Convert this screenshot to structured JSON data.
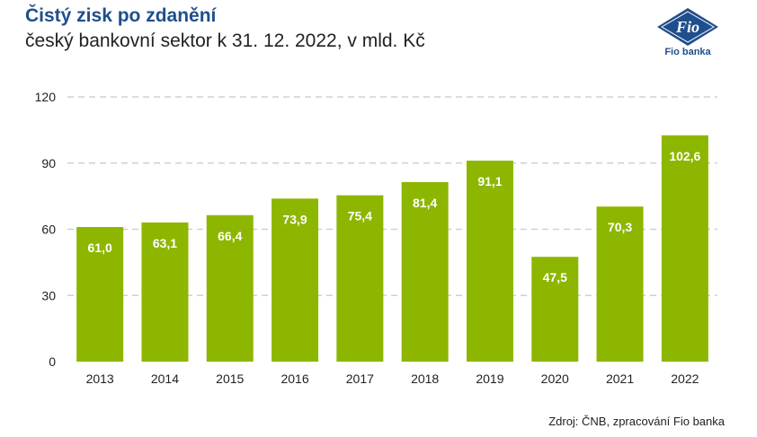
{
  "header": {
    "title": "Čistý zisk po zdanění",
    "subtitle": "český bankovní sektor k 31. 12. 2022, v mld. Kč"
  },
  "logo": {
    "mark": "Fio",
    "label": "Fio banka",
    "color": "#1f4e8c"
  },
  "source": "Zdroj: ČNB, zpracování Fio banka",
  "colors": {
    "bar": "#8db600",
    "gridline": "#d0d0d0",
    "label_text": "#ffffff",
    "axis_text": "#222222"
  },
  "chart_data": {
    "type": "bar",
    "categories": [
      "2013",
      "2014",
      "2015",
      "2016",
      "2017",
      "2018",
      "2019",
      "2020",
      "2021",
      "2022"
    ],
    "values": [
      61.0,
      63.1,
      66.4,
      73.9,
      75.4,
      81.4,
      91.1,
      47.5,
      70.3,
      102.6
    ],
    "value_labels": [
      "61,0",
      "63,1",
      "66,4",
      "73,9",
      "75,4",
      "81,4",
      "91,1",
      "47,5",
      "70,3",
      "102,6"
    ],
    "y_ticks": [
      0,
      30,
      60,
      90,
      120
    ],
    "ylim": [
      0,
      120
    ],
    "grid": true,
    "legend": "none",
    "title": "Čistý zisk po zdanění",
    "subtitle": "český bankovní sektor k 31. 12. 2022, v mld. Kč"
  }
}
